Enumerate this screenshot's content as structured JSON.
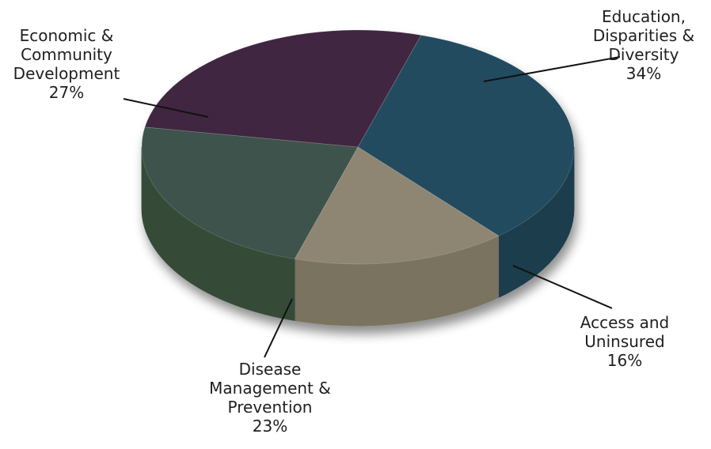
{
  "chart_data": {
    "type": "pie",
    "title": "",
    "slices": [
      {
        "name": "Education, Disparities & Diversity",
        "label_lines": [
          "Education,",
          "Disparities &",
          "Diversity"
        ],
        "value": 34,
        "value_text": "34%",
        "top_color": "#244b5f",
        "side_color": "#1d3c4c"
      },
      {
        "name": "Access and Uninsured",
        "label_lines": [
          "Access and",
          "Uninsured"
        ],
        "value": 16,
        "value_text": "16%",
        "top_color": "#8e8672",
        "side_color": "#7a7360"
      },
      {
        "name": "Disease Management & Prevention",
        "label_lines": [
          "Disease",
          "Management &",
          "Prevention"
        ],
        "value": 23,
        "value_text": "23%",
        "top_color": "#3d534b",
        "side_color": "#354b39"
      },
      {
        "name": "Economic & Community Development",
        "label_lines": [
          "Economic &",
          "Community",
          "Development"
        ],
        "value": 27,
        "value_text": "27%",
        "top_color": "#41283f",
        "side_color": "#2c2e43"
      }
    ]
  }
}
